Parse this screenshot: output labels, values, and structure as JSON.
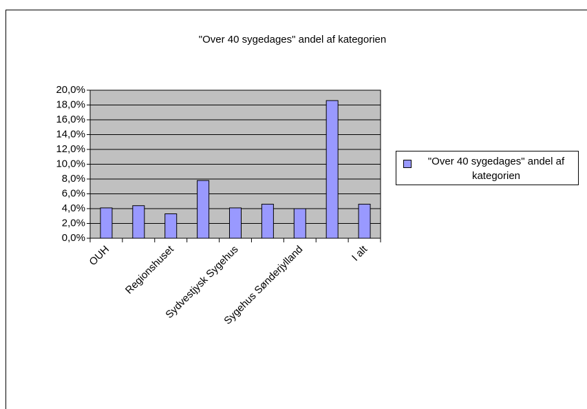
{
  "chart_data": {
    "type": "bar",
    "title": "\"Over 40 sygedages\" andel af kategorien",
    "categories": [
      "OUH",
      null,
      "Regionshuset",
      null,
      "Sydvestjysk Sygehus",
      null,
      "Sygehus Sønderjylland",
      null,
      "I alt"
    ],
    "series": [
      {
        "name": "\"Over 40 sygedages\" andel af kategorien",
        "color": "#9999ff",
        "values": [
          4.1,
          4.4,
          3.3,
          7.8,
          4.1,
          4.6,
          4.0,
          18.6,
          4.6
        ]
      }
    ],
    "ylim": [
      0,
      20
    ],
    "yticks": [
      {
        "value": 0,
        "label": "0,0%"
      },
      {
        "value": 2,
        "label": "2,0%"
      },
      {
        "value": 4,
        "label": "4,0%"
      },
      {
        "value": 6,
        "label": "6,0%"
      },
      {
        "value": 8,
        "label": "8,0%"
      },
      {
        "value": 10,
        "label": "10,0%"
      },
      {
        "value": 12,
        "label": "12,0%"
      },
      {
        "value": 14,
        "label": "14,0%"
      },
      {
        "value": 16,
        "label": "16,0%"
      },
      {
        "value": 18,
        "label": "18,0%"
      },
      {
        "value": 20,
        "label": "20,0%"
      }
    ],
    "grid": true,
    "legend": "right"
  }
}
